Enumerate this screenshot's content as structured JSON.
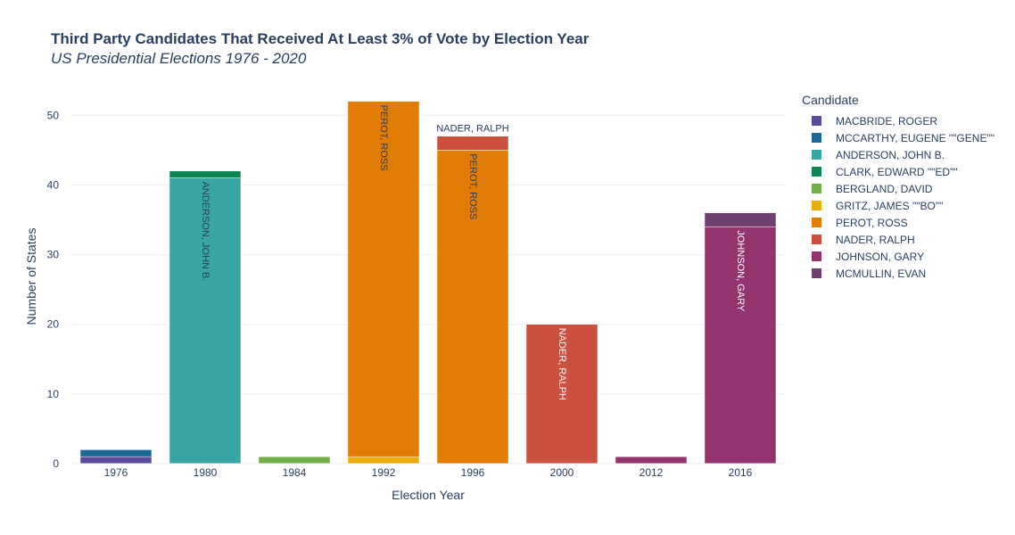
{
  "chart_data": {
    "type": "bar",
    "stacked": true,
    "title": "Third Party Candidates That Received At Least 3% of Vote by Election Year",
    "subtitle": "US Presidential Elections 1976 - 2020",
    "xlabel": "Election Year",
    "ylabel": "Number of States",
    "ylim": [
      0,
      54
    ],
    "yticks": [
      0,
      10,
      20,
      30,
      40,
      50
    ],
    "grid": true,
    "legend_title": "Candidate",
    "legend_position": "right",
    "categories": [
      "1976",
      "1980",
      "1984",
      "1992",
      "1996",
      "2000",
      "2012",
      "2016"
    ],
    "series": [
      {
        "name": "MACBRIDE, ROGER",
        "color": "#5c4a9c",
        "values": [
          1,
          0,
          0,
          0,
          0,
          0,
          0,
          0
        ]
      },
      {
        "name": "MCCARTHY, EUGENE \"\"GENE\"\"",
        "color": "#1d6996",
        "values": [
          1,
          0,
          0,
          0,
          0,
          0,
          0,
          0
        ]
      },
      {
        "name": "ANDERSON, JOHN B.",
        "color": "#38a6a5",
        "values": [
          0,
          41,
          0,
          0,
          0,
          0,
          0,
          0
        ]
      },
      {
        "name": "CLARK, EDWARD \"\"ED\"\"",
        "color": "#0f8554",
        "values": [
          0,
          1,
          0,
          0,
          0,
          0,
          0,
          0
        ]
      },
      {
        "name": "BERGLAND, DAVID",
        "color": "#73af48",
        "values": [
          0,
          0,
          1,
          0,
          0,
          0,
          0,
          0
        ]
      },
      {
        "name": "GRITZ, JAMES \"\"BO\"\"",
        "color": "#edad08",
        "values": [
          0,
          0,
          0,
          1,
          0,
          0,
          0,
          0
        ]
      },
      {
        "name": "PEROT, ROSS",
        "color": "#e17c05",
        "values": [
          0,
          0,
          0,
          51,
          45,
          0,
          0,
          0
        ]
      },
      {
        "name": "NADER, RALPH",
        "color": "#cc503e",
        "values": [
          0,
          0,
          0,
          0,
          2,
          20,
          0,
          0
        ]
      },
      {
        "name": "JOHNSON, GARY",
        "color": "#94346e",
        "values": [
          0,
          0,
          0,
          0,
          0,
          0,
          1,
          34
        ]
      },
      {
        "name": "MCMULLIN, EVAN",
        "color": "#6f4070",
        "values": [
          0,
          0,
          0,
          0,
          0,
          0,
          0,
          2
        ]
      }
    ],
    "annotations": [
      {
        "text": "ANDERSON, JOHN B.",
        "category": "1980",
        "series": "ANDERSON, JOHN B.",
        "position": "inside",
        "rotated": true
      },
      {
        "text": "PEROT, ROSS",
        "category": "1992",
        "series": "PEROT, ROSS",
        "position": "inside",
        "rotated": true
      },
      {
        "text": "NADER, RALPH",
        "category": "1996",
        "series": "NADER, RALPH",
        "position": "outside",
        "rotated": false
      },
      {
        "text": "PEROT, ROSS",
        "category": "1996",
        "series": "PEROT, ROSS",
        "position": "inside",
        "rotated": true
      },
      {
        "text": "NADER, RALPH",
        "category": "2000",
        "series": "NADER, RALPH",
        "position": "inside",
        "rotated": true
      },
      {
        "text": "JOHNSON, GARY",
        "category": "2016",
        "series": "JOHNSON, GARY",
        "position": "inside",
        "rotated": true
      }
    ]
  }
}
